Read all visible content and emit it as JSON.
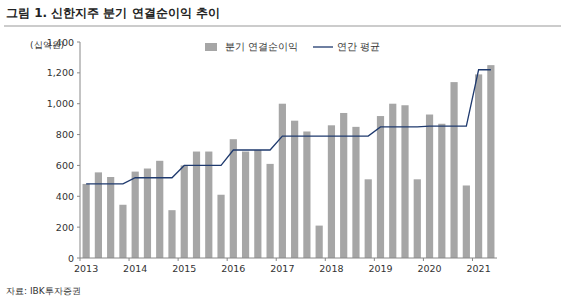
{
  "chart_data": {
    "type": "bar",
    "title": "그림 1. 신한지주 분기 연결순이익 추이",
    "y_label": "(십억원)",
    "source": "자료: IBK투자증권",
    "categories": [
      "2013",
      null,
      null,
      null,
      "2014",
      null,
      null,
      null,
      "2015",
      null,
      null,
      null,
      "2016",
      null,
      null,
      null,
      "2017",
      null,
      null,
      null,
      "2018",
      null,
      null,
      null,
      "2019",
      null,
      null,
      null,
      "2020",
      null,
      null,
      null,
      "2021",
      null
    ],
    "series": [
      {
        "name": "분기 연결순이익",
        "type": "bar",
        "color": "#a6a6a6",
        "values": [
          480,
          555,
          525,
          345,
          560,
          580,
          630,
          310,
          600,
          690,
          690,
          410,
          770,
          690,
          700,
          610,
          1000,
          890,
          820,
          210,
          860,
          940,
          850,
          510,
          920,
          1000,
          990,
          510,
          930,
          870,
          1140,
          470,
          1190,
          1250
        ]
      },
      {
        "name": "연간 평균",
        "type": "line",
        "color": "#1f3a6e",
        "values": [
          480,
          480,
          480,
          480,
          520,
          520,
          520,
          520,
          600,
          600,
          600,
          600,
          700,
          700,
          700,
          700,
          790,
          790,
          790,
          790,
          790,
          790,
          790,
          790,
          850,
          850,
          850,
          850,
          855,
          855,
          855,
          855,
          1220,
          1220
        ]
      }
    ],
    "ylim": [
      0,
      1400
    ],
    "yticks": [
      0,
      {
        "value": 200,
        "label": "200"
      },
      400,
      600,
      800,
      {
        "value": 1000,
        "label": "1,000"
      },
      {
        "value": 1200,
        "label": "1,200"
      },
      {
        "value": 1400,
        "label": "1,400"
      }
    ],
    "grid": false,
    "legend": "top"
  }
}
